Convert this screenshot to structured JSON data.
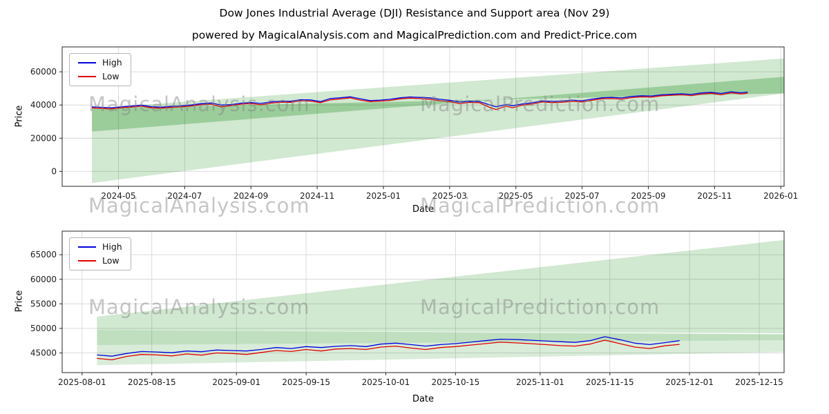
{
  "header": {
    "title": "Dow Jones Industrial Average (DJI) Resistance and Support area (Nov 29)",
    "subtitle": "powered by MagicalAnalysis.com and MagicalPrediction.com and Predict-Price.com"
  },
  "watermarks": {
    "left": "MagicalAnalysis.com",
    "right": "MagicalPrediction.com"
  },
  "chart_data": [
    {
      "type": "line",
      "xlabel": "Date",
      "ylabel": "Price",
      "grid": true,
      "legend_position": "upper left",
      "band_color": "#008000",
      "x_domain": [
        2.3,
        24.1
      ],
      "y_domain": [
        -9000,
        75000
      ],
      "x_ticks": [
        {
          "t": 4,
          "label": "2024-05"
        },
        {
          "t": 6,
          "label": "2024-07"
        },
        {
          "t": 8,
          "label": "2024-09"
        },
        {
          "t": 10,
          "label": "2024-11"
        },
        {
          "t": 12,
          "label": "2025-01"
        },
        {
          "t": 14,
          "label": "2025-03"
        },
        {
          "t": 16,
          "label": "2025-05"
        },
        {
          "t": 18,
          "label": "2025-07"
        },
        {
          "t": 20,
          "label": "2025-09"
        },
        {
          "t": 22,
          "label": "2025-11"
        },
        {
          "t": 24,
          "label": "2026-01"
        }
      ],
      "y_ticks": [
        {
          "v": 0,
          "label": "0"
        },
        {
          "v": 20000,
          "label": "20000"
        },
        {
          "v": 40000,
          "label": "40000"
        },
        {
          "v": 60000,
          "label": "60000"
        }
      ],
      "bands": [
        {
          "t": [
            3.2,
            24.1
          ],
          "upper": [
            38000,
            68000
          ],
          "lower": [
            -7000,
            47000
          ],
          "alpha": 0.18
        },
        {
          "t": [
            3.2,
            24.1
          ],
          "upper": [
            38000,
            47000
          ],
          "lower": [
            24000,
            57000
          ],
          "alpha": 0.26
        }
      ],
      "columns": [
        "t_months_since_2024_01",
        "high",
        "low"
      ],
      "points": [
        [
          3.2,
          38900,
          38300
        ],
        [
          3.5,
          38600,
          37900
        ],
        [
          3.8,
          38350,
          37700
        ],
        [
          4.1,
          38900,
          38350
        ],
        [
          4.4,
          39350,
          38800
        ],
        [
          4.7,
          39950,
          39300
        ],
        [
          5.0,
          38950,
          38300
        ],
        [
          5.3,
          38700,
          38100
        ],
        [
          5.6,
          39150,
          38550
        ],
        [
          5.9,
          39500,
          38900
        ],
        [
          6.2,
          40000,
          39400
        ],
        [
          6.5,
          40800,
          40200
        ],
        [
          6.8,
          41200,
          40500
        ],
        [
          7.1,
          40000,
          38900
        ],
        [
          7.4,
          40250,
          39650
        ],
        [
          7.7,
          41100,
          40500
        ],
        [
          8.0,
          41500,
          40900
        ],
        [
          8.3,
          40950,
          40100
        ],
        [
          8.6,
          41800,
          41100
        ],
        [
          8.9,
          42300,
          41700
        ],
        [
          9.2,
          42250,
          41600
        ],
        [
          9.5,
          43200,
          42550
        ],
        [
          9.8,
          43050,
          42350
        ],
        [
          10.1,
          42050,
          41400
        ],
        [
          10.4,
          43900,
          43050
        ],
        [
          10.7,
          44350,
          43650
        ],
        [
          11.0,
          44950,
          44300
        ],
        [
          11.3,
          43750,
          42950
        ],
        [
          11.6,
          42650,
          42050
        ],
        [
          11.9,
          42950,
          42350
        ],
        [
          12.2,
          43450,
          42750
        ],
        [
          12.5,
          44300,
          43700
        ],
        [
          12.8,
          44850,
          44150
        ],
        [
          13.1,
          44550,
          43850
        ],
        [
          13.4,
          44300,
          43500
        ],
        [
          13.7,
          43450,
          42550
        ],
        [
          14.0,
          42850,
          42050
        ],
        [
          14.3,
          41750,
          40850
        ],
        [
          14.6,
          42250,
          41550
        ],
        [
          14.9,
          42050,
          41350
        ],
        [
          15.2,
          40100,
          38600
        ],
        [
          15.4,
          38950,
          37250
        ],
        [
          15.7,
          40250,
          39350
        ],
        [
          15.9,
          39550,
          38350
        ],
        [
          16.2,
          40650,
          39950
        ],
        [
          16.5,
          41350,
          40650
        ],
        [
          16.8,
          42450,
          41850
        ],
        [
          17.1,
          42150,
          41450
        ],
        [
          17.4,
          42350,
          41650
        ],
        [
          17.7,
          42950,
          42250
        ],
        [
          18.0,
          42550,
          41850
        ],
        [
          18.3,
          43550,
          42850
        ],
        [
          18.6,
          44350,
          43750
        ],
        [
          18.9,
          44550,
          43850
        ],
        [
          19.2,
          44250,
          43550
        ],
        [
          19.5,
          45150,
          44450
        ],
        [
          19.8,
          45550,
          44950
        ],
        [
          20.1,
          45450,
          44750
        ],
        [
          20.4,
          46150,
          45550
        ],
        [
          20.7,
          46450,
          45850
        ],
        [
          21.0,
          46750,
          46150
        ],
        [
          21.3,
          46350,
          45650
        ],
        [
          21.6,
          47250,
          46550
        ],
        [
          21.9,
          47650,
          47050
        ],
        [
          22.2,
          46950,
          46150
        ],
        [
          22.5,
          47950,
          47350
        ],
        [
          22.8,
          47350,
          46650
        ],
        [
          23.0,
          47800,
          47100
        ]
      ],
      "series": [
        {
          "name": "High",
          "color": "#0000e0",
          "col": 1
        },
        {
          "name": "Low",
          "color": "#e00000",
          "col": 2
        }
      ]
    },
    {
      "type": "line",
      "xlabel": "Date",
      "ylabel": "Price",
      "grid": true,
      "legend_position": "upper left",
      "band_color": "#008000",
      "x_domain": [
        -4,
        141
      ],
      "y_domain": [
        41000,
        69800
      ],
      "x_ticks": [
        {
          "t": 0,
          "label": "2025-08-01"
        },
        {
          "t": 14,
          "label": "2025-08-15"
        },
        {
          "t": 31,
          "label": "2025-09-01"
        },
        {
          "t": 45,
          "label": "2025-09-15"
        },
        {
          "t": 61,
          "label": "2025-10-01"
        },
        {
          "t": 75,
          "label": "2025-10-15"
        },
        {
          "t": 92,
          "label": "2025-11-01"
        },
        {
          "t": 106,
          "label": "2025-11-15"
        },
        {
          "t": 122,
          "label": "2025-12-01"
        },
        {
          "t": 136,
          "label": "2025-12-15"
        }
      ],
      "y_ticks": [
        {
          "v": 45000,
          "label": "45000"
        },
        {
          "v": 50000,
          "label": "50000"
        },
        {
          "v": 55000,
          "label": "55000"
        },
        {
          "v": 60000,
          "label": "60000"
        },
        {
          "v": 65000,
          "label": "65000"
        }
      ],
      "bands": [
        {
          "t": [
            3,
            141
          ],
          "upper": [
            52400,
            68000
          ],
          "lower": [
            49700,
            49000
          ],
          "alpha": 0.18
        },
        {
          "t": [
            3,
            141
          ],
          "upper": [
            49700,
            48800
          ],
          "lower": [
            46600,
            47600
          ],
          "alpha": 0.25
        },
        {
          "t": [
            3,
            141
          ],
          "upper": [
            46600,
            47600
          ],
          "lower": [
            42500,
            45200
          ],
          "alpha": 0.15
        }
      ],
      "columns": [
        "t_days_since_2025_08_01",
        "high",
        "low"
      ],
      "points": [
        [
          3,
          44600,
          43900
        ],
        [
          6,
          44350,
          43600
        ],
        [
          9,
          44900,
          44300
        ],
        [
          12,
          45300,
          44700
        ],
        [
          15,
          45200,
          44600
        ],
        [
          18,
          45050,
          44400
        ],
        [
          21,
          45400,
          44800
        ],
        [
          24,
          45250,
          44550
        ],
        [
          27,
          45600,
          45000
        ],
        [
          30,
          45500,
          44900
        ],
        [
          33,
          45400,
          44700
        ],
        [
          36,
          45700,
          45100
        ],
        [
          39,
          46100,
          45500
        ],
        [
          42,
          45900,
          45300
        ],
        [
          45,
          46300,
          45700
        ],
        [
          48,
          46100,
          45400
        ],
        [
          51,
          46350,
          45800
        ],
        [
          54,
          46500,
          45900
        ],
        [
          57,
          46300,
          45700
        ],
        [
          60,
          46800,
          46200
        ],
        [
          63,
          47000,
          46400
        ],
        [
          66,
          46700,
          46000
        ],
        [
          69,
          46400,
          45700
        ],
        [
          72,
          46700,
          46100
        ],
        [
          75,
          46900,
          46300
        ],
        [
          78,
          47200,
          46600
        ],
        [
          81,
          47500,
          46900
        ],
        [
          84,
          47800,
          47200
        ],
        [
          87,
          47750,
          47050
        ],
        [
          90,
          47600,
          46900
        ],
        [
          93,
          47450,
          46700
        ],
        [
          96,
          47300,
          46500
        ],
        [
          99,
          47150,
          46400
        ],
        [
          102,
          47500,
          46800
        ],
        [
          105,
          48300,
          47600
        ],
        [
          108,
          47700,
          46900
        ],
        [
          111,
          47000,
          46200
        ],
        [
          114,
          46700,
          45900
        ],
        [
          117,
          47100,
          46450
        ],
        [
          120,
          47500,
          46750
        ]
      ],
      "series": [
        {
          "name": "High",
          "color": "#0000e0",
          "col": 1
        },
        {
          "name": "Low",
          "color": "#e00000",
          "col": 2
        }
      ]
    }
  ]
}
